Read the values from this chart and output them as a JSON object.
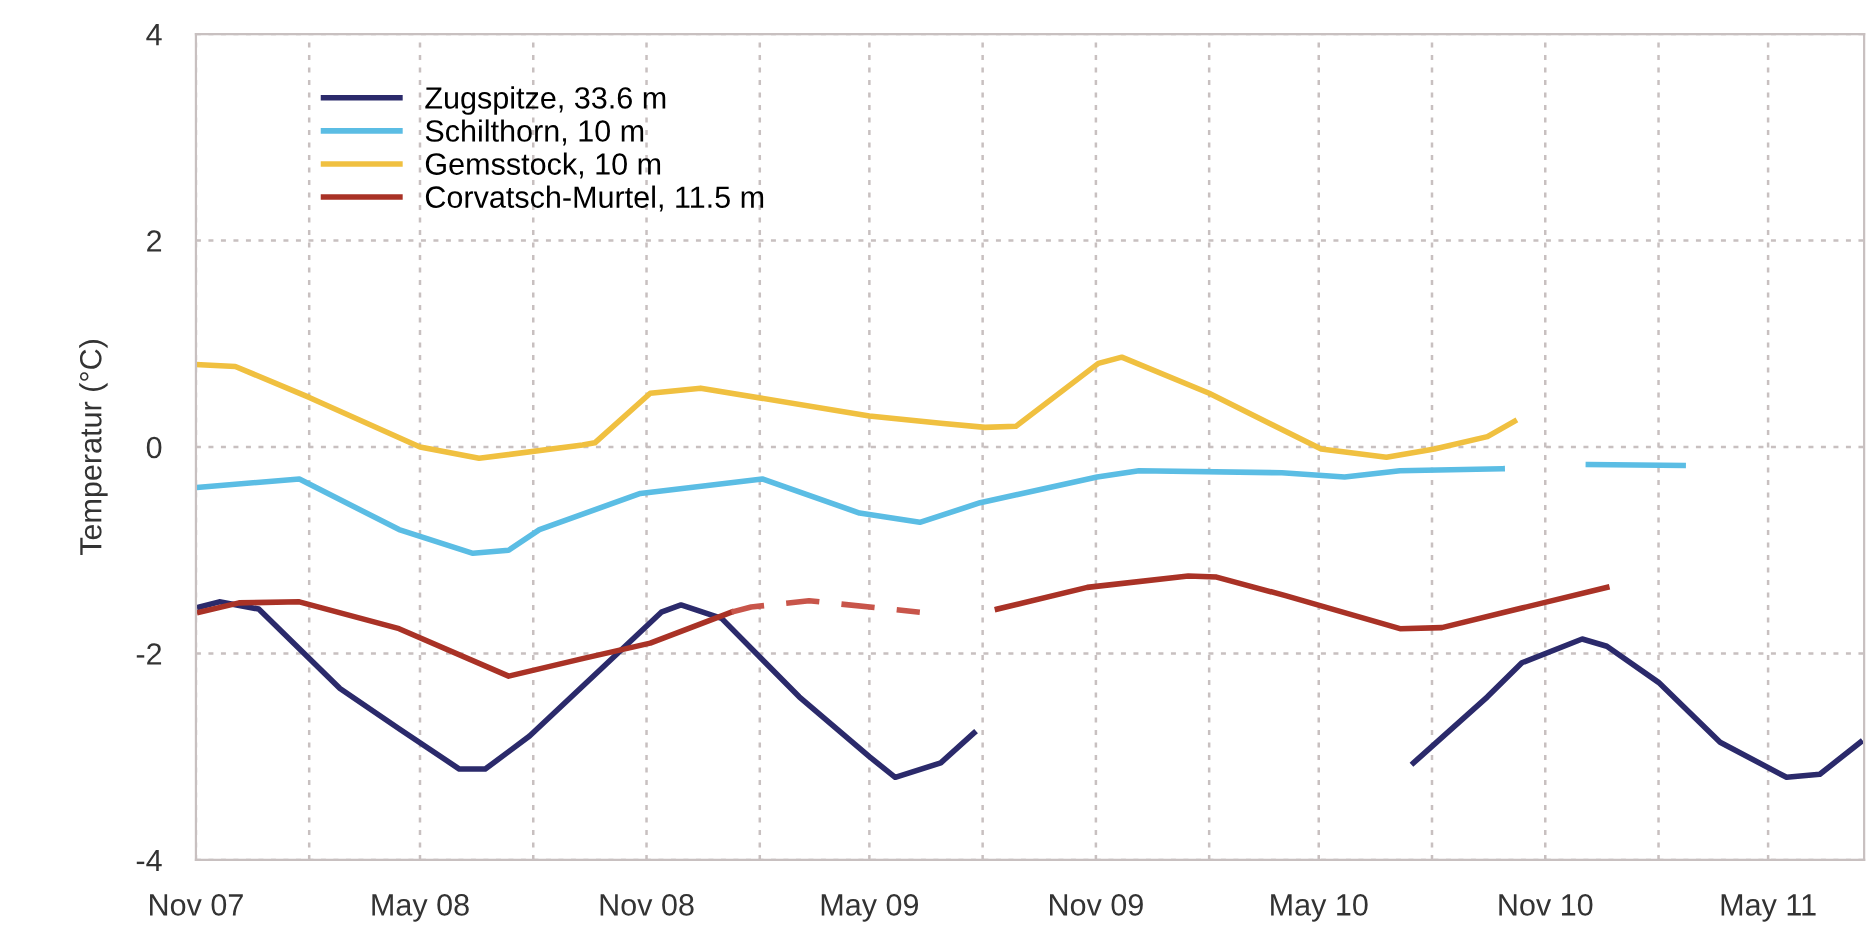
{
  "chart_data": {
    "type": "line",
    "ylabel": "Temperatur (°C)",
    "xlim": [
      "2007-11-01",
      "2011-07-18"
    ],
    "ylim": [
      -4,
      4
    ],
    "yticks": [
      -4,
      -2,
      0,
      2,
      4
    ],
    "xticks": [
      {
        "value": "2007-11-01",
        "label": "Nov 07"
      },
      {
        "value": "2008-02-01",
        "label": null
      },
      {
        "value": "2008-05-01",
        "label": "May 08"
      },
      {
        "value": "2008-08-01",
        "label": null
      },
      {
        "value": "2008-11-01",
        "label": "Nov 08"
      },
      {
        "value": "2009-02-01",
        "label": null
      },
      {
        "value": "2009-05-01",
        "label": "May 09"
      },
      {
        "value": "2009-08-01",
        "label": null
      },
      {
        "value": "2009-11-01",
        "label": "Nov 09"
      },
      {
        "value": "2010-02-01",
        "label": null
      },
      {
        "value": "2010-05-01",
        "label": "May 10"
      },
      {
        "value": "2010-08-01",
        "label": null
      },
      {
        "value": "2010-11-01",
        "label": "Nov 10"
      },
      {
        "value": "2011-02-01",
        "label": null
      },
      {
        "value": "2011-05-01",
        "label": "May 11"
      }
    ],
    "grid": true,
    "legend": "top left",
    "line_style": "solid",
    "series": [
      {
        "name": "Zugspitze, 33.6 m",
        "color": "#2b2a6b",
        "x": [
          "2007-11-04",
          "2007-11-20",
          "2007-12-22",
          "2008-02-26",
          "2008-04-14",
          "2008-06-02",
          "2008-06-23",
          "2008-07-29",
          "2008-09-25",
          "2008-11-13",
          "2008-11-29",
          "2009-01-01",
          "2009-03-05",
          "2009-05-01",
          "2009-05-22",
          "2009-06-28",
          "2009-07-25",
          "2010-01-01",
          "2010-07-17",
          "2010-09-15",
          "2010-10-13",
          "2010-12-01",
          "2010-12-21",
          "2011-02-01",
          "2011-03-23",
          "2011-05-16",
          "2011-06-12",
          "2011-07-15"
        ],
        "values": [
          -1.55,
          -1.5,
          -1.57,
          -2.34,
          -2.73,
          -3.12,
          -3.12,
          -2.8,
          -2.15,
          -1.6,
          -1.53,
          -1.66,
          -2.42,
          -3.0,
          -3.2,
          -3.06,
          -2.77,
          null,
          -3.06,
          -2.42,
          -2.09,
          -1.86,
          -1.93,
          -2.28,
          -2.86,
          -3.2,
          -3.17,
          -2.86
        ]
      },
      {
        "name": "Schilthorn, 10 m",
        "color": "#5bbde4",
        "x": [
          "2007-11-04",
          "2008-01-24",
          "2008-04-14",
          "2008-06-13",
          "2008-07-12",
          "2008-08-06",
          "2008-10-27",
          "2009-02-03",
          "2009-04-23",
          "2009-06-11",
          "2009-07-30",
          "2009-11-02",
          "2009-12-06",
          "2010-04-01",
          "2010-05-22",
          "2010-07-06",
          "2010-09-27",
          "2010-11-01",
          "2010-12-06",
          "2011-02-21"
        ],
        "values": [
          -0.39,
          -0.31,
          -0.8,
          -1.03,
          -1.0,
          -0.8,
          -0.45,
          -0.31,
          -0.64,
          -0.73,
          -0.54,
          -0.29,
          -0.23,
          -0.25,
          -0.29,
          -0.23,
          -0.21,
          null,
          -0.17,
          -0.18
        ]
      },
      {
        "name": "Gemsstock, 10 m",
        "color": "#f0c040",
        "x": [
          "2007-11-01",
          "2007-12-03",
          "2008-02-01",
          "2008-05-01",
          "2008-06-18",
          "2008-09-10",
          "2008-09-20",
          "2008-11-04",
          "2008-12-15",
          "2009-05-01",
          "2009-06-28",
          "2009-08-03",
          "2009-08-28",
          "2009-11-03",
          "2009-11-22",
          "2010-02-01",
          "2010-05-03",
          "2010-06-25",
          "2010-08-03",
          "2010-09-15",
          "2010-10-07"
        ],
        "values": [
          0.8,
          0.78,
          0.48,
          0.0,
          -0.11,
          0.02,
          0.04,
          0.52,
          0.57,
          0.3,
          0.23,
          0.19,
          0.2,
          0.81,
          0.87,
          0.52,
          -0.02,
          -0.1,
          -0.02,
          0.1,
          0.25
        ]
      },
      {
        "name": "Corvatsch-Murtel, 11.5 m",
        "color": "#a93226",
        "x": [
          "2007-11-04",
          "2007-12-06",
          "2008-01-24",
          "2008-04-14",
          "2008-07-12",
          "2008-09-10",
          "2008-11-04",
          "2009-01-09",
          "2009-05-01",
          "2009-08-13",
          "2009-10-25",
          "2010-01-15",
          "2010-02-07",
          "2010-04-04",
          "2010-07-06",
          "2010-08-09",
          "2010-10-13",
          "2010-12-21"
        ],
        "values": [
          -1.6,
          -1.51,
          -1.5,
          -1.76,
          -2.22,
          -2.05,
          -1.9,
          -1.6,
          null,
          -1.57,
          -1.36,
          -1.25,
          -1.26,
          -1.44,
          -1.76,
          -1.75,
          -1.56,
          -1.36
        ]
      },
      {
        "color": "#c8554a",
        "line_style": "dashed",
        "x": [
          "2009-01-09",
          "2009-01-25",
          "2009-03-13",
          "2009-06-11"
        ],
        "values": [
          -1.6,
          -1.55,
          -1.49,
          -1.6
        ]
      }
    ]
  }
}
